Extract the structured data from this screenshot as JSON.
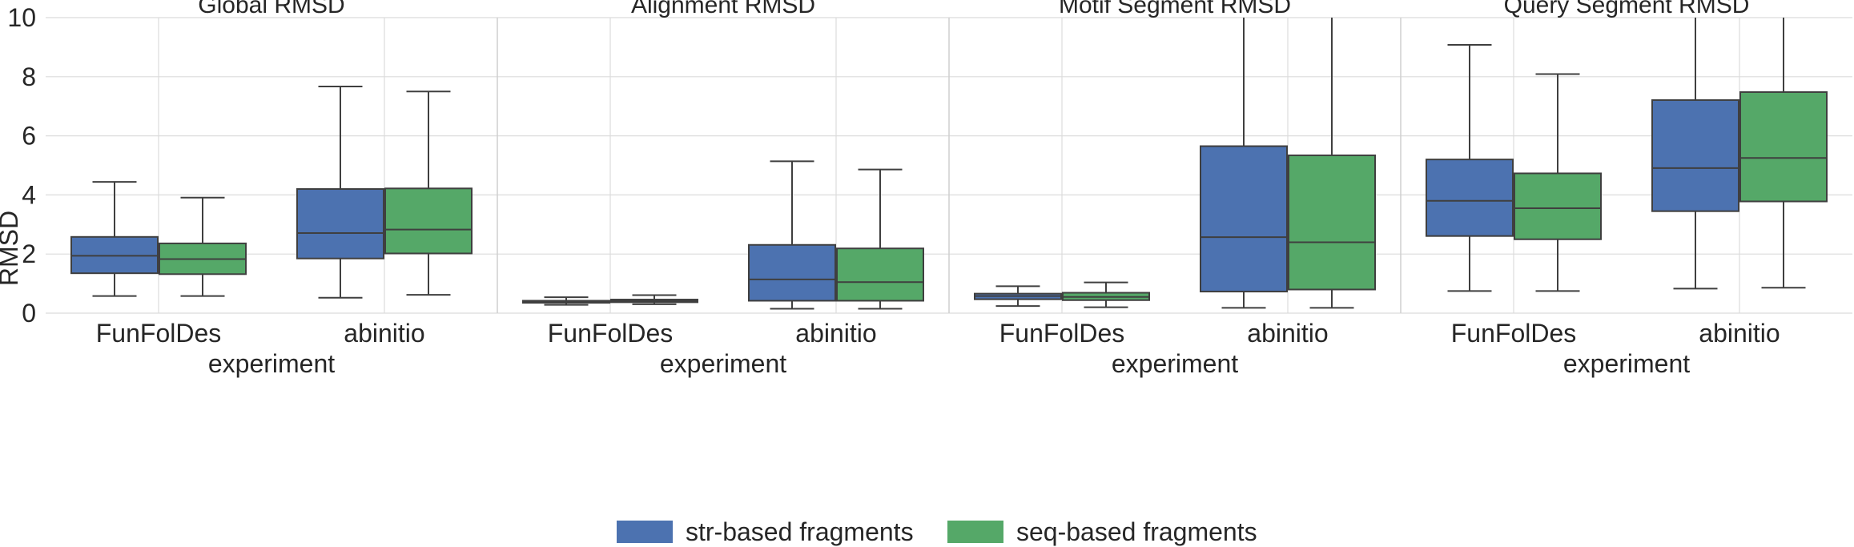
{
  "chart_data": {
    "type": "box",
    "ylabel": "RMSD",
    "xlabel": "experiment",
    "ylim": [
      0,
      10
    ],
    "yticks": [
      0,
      2,
      4,
      6,
      8,
      10
    ],
    "grid": true,
    "legend_position": "bottom-center",
    "categories": [
      "FunFolDes",
      "abinitio"
    ],
    "series": [
      {
        "name": "str-based fragments",
        "color": "#4c72b0"
      },
      {
        "name": "seq-based fragments",
        "color": "#55a868"
      }
    ],
    "panels": [
      {
        "title": "Global RMSD",
        "groups": [
          {
            "category": "FunFolDes",
            "boxes": [
              {
                "series": "str-based fragments",
                "whisker_low": 0.58,
                "q1": 1.35,
                "median": 1.94,
                "q3": 2.58,
                "whisker_high": 4.44
              },
              {
                "series": "seq-based fragments",
                "whisker_low": 0.58,
                "q1": 1.32,
                "median": 1.83,
                "q3": 2.36,
                "whisker_high": 3.91
              }
            ]
          },
          {
            "category": "abinitio",
            "boxes": [
              {
                "series": "str-based fragments",
                "whisker_low": 0.52,
                "q1": 1.85,
                "median": 2.71,
                "q3": 4.2,
                "whisker_high": 7.67
              },
              {
                "series": "seq-based fragments",
                "whisker_low": 0.62,
                "q1": 2.02,
                "median": 2.83,
                "q3": 4.22,
                "whisker_high": 7.5
              }
            ]
          }
        ]
      },
      {
        "title": "Alignment RMSD",
        "groups": [
          {
            "category": "FunFolDes",
            "boxes": [
              {
                "series": "str-based fragments",
                "whisker_low": 0.28,
                "q1": 0.35,
                "median": 0.38,
                "q3": 0.42,
                "whisker_high": 0.54
              },
              {
                "series": "seq-based fragments",
                "whisker_low": 0.3,
                "q1": 0.37,
                "median": 0.41,
                "q3": 0.46,
                "whisker_high": 0.61
              }
            ]
          },
          {
            "category": "abinitio",
            "boxes": [
              {
                "series": "str-based fragments",
                "whisker_low": 0.15,
                "q1": 0.42,
                "median": 1.14,
                "q3": 2.31,
                "whisker_high": 5.14
              },
              {
                "series": "seq-based fragments",
                "whisker_low": 0.15,
                "q1": 0.42,
                "median": 1.05,
                "q3": 2.19,
                "whisker_high": 4.86
              }
            ]
          }
        ]
      },
      {
        "title": "Motif Segment RMSD",
        "groups": [
          {
            "category": "FunFolDes",
            "boxes": [
              {
                "series": "str-based fragments",
                "whisker_low": 0.24,
                "q1": 0.47,
                "median": 0.58,
                "q3": 0.66,
                "whisker_high": 0.91
              },
              {
                "series": "seq-based fragments",
                "whisker_low": 0.2,
                "q1": 0.44,
                "median": 0.55,
                "q3": 0.69,
                "whisker_high": 1.04
              }
            ]
          },
          {
            "category": "abinitio",
            "boxes": [
              {
                "series": "str-based fragments",
                "whisker_low": 0.18,
                "q1": 0.73,
                "median": 2.57,
                "q3": 5.65,
                "whisker_high": 10
              },
              {
                "series": "seq-based fragments",
                "whisker_low": 0.18,
                "q1": 0.8,
                "median": 2.4,
                "q3": 5.34,
                "whisker_high": 10
              }
            ]
          }
        ]
      },
      {
        "title": "Query Segment RMSD",
        "groups": [
          {
            "category": "FunFolDes",
            "boxes": [
              {
                "series": "str-based fragments",
                "whisker_low": 0.75,
                "q1": 2.61,
                "median": 3.8,
                "q3": 5.2,
                "whisker_high": 9.08
              },
              {
                "series": "seq-based fragments",
                "whisker_low": 0.75,
                "q1": 2.5,
                "median": 3.55,
                "q3": 4.73,
                "whisker_high": 8.09
              }
            ]
          },
          {
            "category": "abinitio",
            "boxes": [
              {
                "series": "str-based fragments",
                "whisker_low": 0.83,
                "q1": 3.45,
                "median": 4.91,
                "q3": 7.21,
                "whisker_high": 10
              },
              {
                "series": "seq-based fragments",
                "whisker_low": 0.86,
                "q1": 3.78,
                "median": 5.25,
                "q3": 7.48,
                "whisker_high": 10
              }
            ]
          }
        ]
      }
    ]
  }
}
